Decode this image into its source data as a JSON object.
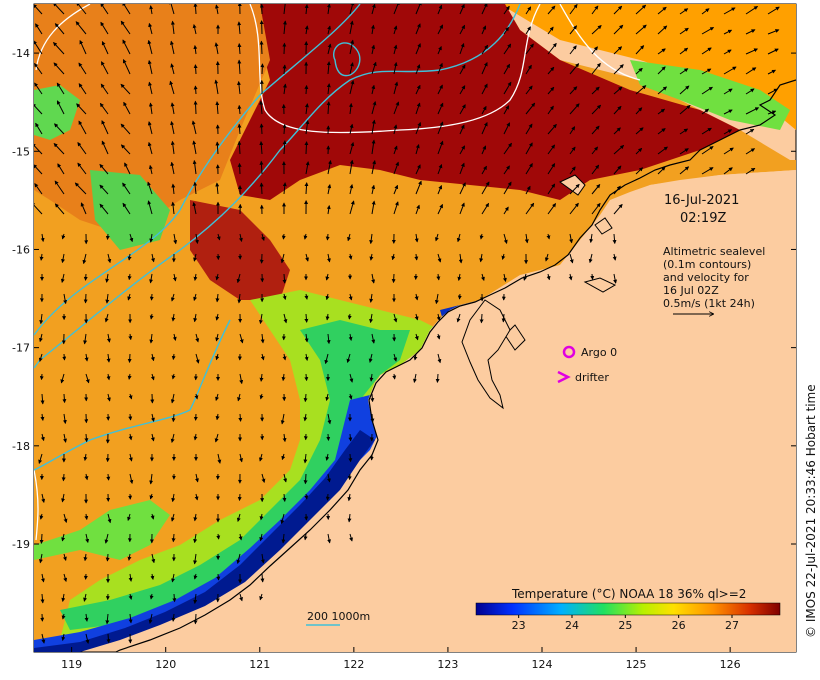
{
  "map": {
    "axes": {
      "y_ticks": [
        {
          "label": "-14",
          "value": -14
        },
        {
          "label": "-15",
          "value": -15
        },
        {
          "label": "-16",
          "value": -16
        },
        {
          "label": "-17",
          "value": -17
        },
        {
          "label": "-18",
          "value": -18
        },
        {
          "label": "-19",
          "value": -19
        }
      ],
      "x_ticks": [
        {
          "label": "119",
          "value": 119
        },
        {
          "label": "120",
          "value": 120
        },
        {
          "label": "121",
          "value": 121
        },
        {
          "label": "122",
          "value": 122
        },
        {
          "label": "123",
          "value": 123
        },
        {
          "label": "124",
          "value": 124
        },
        {
          "label": "125",
          "value": 125
        },
        {
          "label": "126",
          "value": 126
        }
      ],
      "lon_range": [
        118.6,
        126.7
      ],
      "lat_range": [
        -20.1,
        -13.5
      ]
    },
    "timestamp": {
      "date": "16-Jul-2021",
      "time": "02:19Z"
    },
    "altimetry_note": {
      "lines": [
        "Altimetric sealevel",
        "(0.1m contours)",
        "and velocity for",
        "16 Jul 02Z",
        "0.5m/s (1kt 24h)"
      ]
    },
    "legend": {
      "argo_label": "Argo 0",
      "drifter_label": "drifter",
      "argo_color": "#e000e0",
      "drifter_color": "#e000e0"
    },
    "bathymetry": {
      "label": "200  1000m",
      "line_color": "#40c0d8"
    },
    "colorbar": {
      "title": "Temperature (°C) NOAA 18 36% ql>=2",
      "ticks": [
        "23",
        "24",
        "25",
        "26",
        "27"
      ],
      "range": [
        22.2,
        27.9
      ]
    },
    "credit": "© IMOS 22-Jul-2021 20:33:46 Hobart time",
    "colors": {
      "land": "#fccca0",
      "warm": "#9a0000",
      "cold": "#0a1a8a"
    }
  }
}
